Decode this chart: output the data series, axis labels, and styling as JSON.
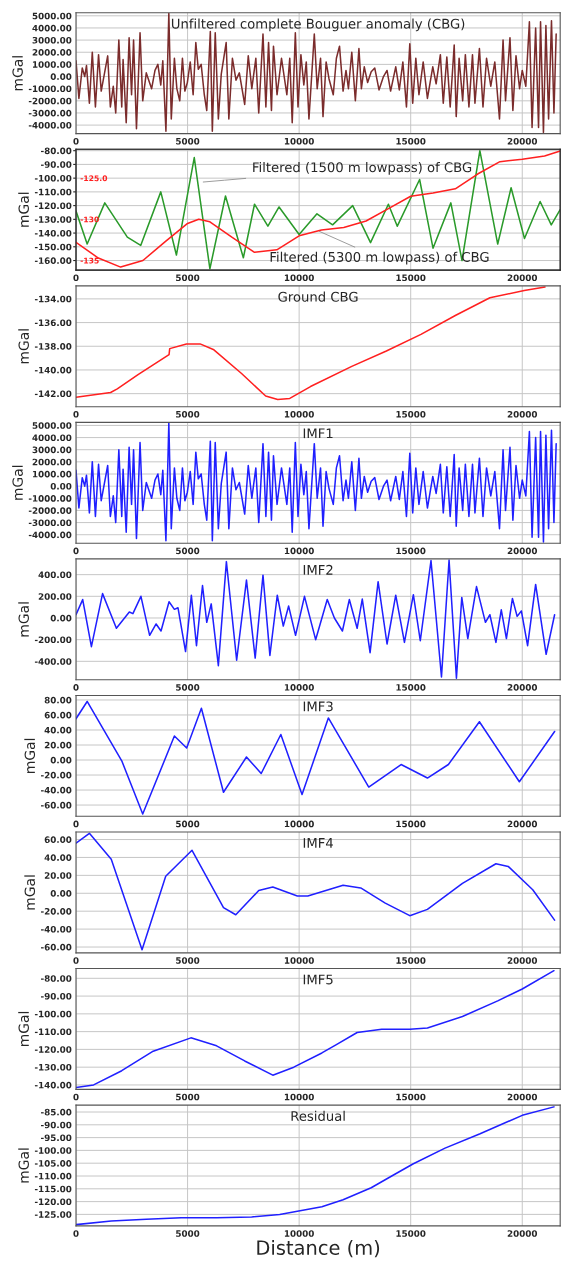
{
  "chart_data": [
    {
      "type": "line",
      "title": "Unfiltered complete Bouguer anomaly (CBG)",
      "ylabel": "mGal",
      "xlim": [
        0,
        21700
      ],
      "xticks": [
        0,
        5000,
        10000,
        15000,
        20000
      ],
      "ylim": [
        -4700,
        5250
      ],
      "yticks": [
        {
          "value": -4000,
          "label": "-4000.00"
        },
        {
          "value": -3000,
          "label": "-3000.00"
        },
        {
          "value": -2000,
          "label": "-2000.00"
        },
        {
          "value": -1000,
          "label": "-1000.00"
        },
        {
          "value": 0,
          "label": "0.00"
        },
        {
          "value": 1000,
          "label": "1000.00"
        },
        {
          "value": 2000,
          "label": "2000.00"
        },
        {
          "value": 3000,
          "label": "3000.00"
        },
        {
          "value": 4000,
          "label": "4000.00"
        },
        {
          "value": 5000,
          "label": "5000.00"
        }
      ],
      "grid": true,
      "x": [
        0,
        130,
        280,
        390,
        470,
        600,
        730,
        870,
        1010,
        1130,
        1420,
        1540,
        1670,
        1780,
        1920,
        2050,
        2110,
        2250,
        2380,
        2490,
        2580,
        2710,
        2870,
        2990,
        3150,
        3390,
        3540,
        3670,
        3800,
        3890,
        4030,
        4160,
        4270,
        4410,
        4520,
        4650,
        4770,
        4880,
        4990,
        5120,
        5250,
        5370,
        5480,
        5610,
        5750,
        5860,
        6020,
        6110,
        6240,
        6380,
        6510,
        6730,
        6850,
        7010,
        7170,
        7320,
        7560,
        7720,
        7880,
        8060,
        8190,
        8380,
        8510,
        8630,
        8760,
        8850,
        9010,
        9210,
        9450,
        9580,
        9690,
        9830,
        9950,
        10080,
        10210,
        10320,
        10440,
        10680,
        10810,
        10960,
        11070,
        11210,
        11340,
        11530,
        11670,
        11810,
        11970,
        12100,
        12210,
        12360,
        12520,
        12680,
        12790,
        12920,
        13070,
        13230,
        13390,
        13580,
        13780,
        13940,
        14100,
        14330,
        14490,
        14650,
        14810,
        14960,
        15090,
        15230,
        15370,
        15560,
        15750,
        15990,
        16140,
        16330,
        16460,
        16620,
        16770,
        16950,
        17040,
        17170,
        17330,
        17450,
        17610,
        17770,
        17880,
        18080,
        18240,
        18400,
        18590,
        18770,
        18980,
        19140,
        19250,
        19450,
        19580,
        19720,
        19880,
        20000,
        20160,
        20320,
        20440,
        20600,
        20730,
        20820,
        20950,
        21060,
        21180,
        21310,
        21420,
        21520
      ],
      "series": [
        {
          "color": "#7b2c2c",
          "values": [
            1300,
            -1800,
            700,
            0,
            900,
            -2200,
            2000,
            -2500,
            1800,
            -1200,
            1700,
            -2500,
            -800,
            -3000,
            3000,
            -2500,
            1400,
            -3800,
            3200,
            -1500,
            3000,
            -4300,
            3600,
            -2000,
            300,
            -1000,
            500,
            1000,
            -700,
            1300,
            -4500,
            5200,
            -3500,
            1500,
            -1000,
            -2000,
            1500,
            -1200,
            -500,
            1200,
            -1500,
            2800,
            600,
            1000,
            -1500,
            -2800,
            3700,
            -4500,
            3600,
            -3500,
            200,
            2800,
            -3500,
            1500,
            -300,
            300,
            -2300,
            1700,
            -1000,
            1500,
            -3000,
            3500,
            -2500,
            2800,
            -2800,
            2500,
            -1500,
            1500,
            -1500,
            1500,
            -3800,
            3600,
            -2500,
            1800,
            -700,
            1200,
            -3500,
            3500,
            -1000,
            1500,
            -3300,
            1200,
            -200,
            -1500,
            1500,
            2500,
            -1200,
            500,
            -1000,
            2000,
            -2000,
            2300,
            -1000,
            800,
            -500,
            400,
            700,
            -1100,
            0,
            500,
            -1200,
            800,
            -1100,
            1200,
            -2500,
            2700,
            -2200,
            1500,
            -1500,
            1200,
            -1800,
            800,
            -600,
            1800,
            -2200,
            1600,
            -2500,
            2600,
            -3300,
            1500,
            -2000,
            1800,
            -2500,
            1800,
            -2200,
            2300,
            -2500,
            1500,
            -800,
            1200,
            -3500,
            3000,
            -2000,
            3200,
            -2800,
            1700,
            -1000,
            500,
            -800,
            4500,
            -4200,
            4000,
            -4200,
            4500,
            -4600,
            4200,
            -3500,
            4600,
            -3000,
            3500
          ]
        }
      ]
    },
    {
      "type": "line",
      "ylabel": "mGal",
      "xlim": [
        0,
        21700
      ],
      "xticks": [
        0,
        5000,
        10000,
        15000,
        20000
      ],
      "ylim": [
        -167,
        -79
      ],
      "yticks": [
        {
          "value": -160,
          "label": "-160.00"
        },
        {
          "value": -150,
          "label": "-150.00"
        },
        {
          "value": -140,
          "label": "-140.00"
        },
        {
          "value": -130,
          "label": "-130.00"
        },
        {
          "value": -120,
          "label": "-120.00"
        },
        {
          "value": -110,
          "label": "-110.00"
        },
        {
          "value": -100,
          "label": "-100.00"
        },
        {
          "value": -90,
          "label": "-90.00"
        },
        {
          "value": -80,
          "label": "-80.00"
        }
      ],
      "y2lim": [
        -136.17,
        -121.5
      ],
      "y2ticks": [
        {
          "value": -135,
          "label": "-135"
        },
        {
          "value": -130,
          "label": "-130"
        },
        {
          "value": -125,
          "label": "-125.0"
        }
      ],
      "grid": true,
      "annotations": [
        {
          "text": "Filtered (1500 m lowpass) of CBG",
          "x": 5580,
          "y": -103
        },
        {
          "text": "Filtered (5300 m lowpass) of CBG",
          "x": 10800,
          "y": -138
        }
      ],
      "series": [
        {
          "color": "#2a9a2a",
          "x": [
            0,
            500,
            1290,
            2300,
            2900,
            3800,
            4500,
            5300,
            6000,
            6700,
            7500,
            8000,
            8600,
            9100,
            10000,
            10800,
            11500,
            12400,
            13200,
            14000,
            14400,
            15400,
            16000,
            16800,
            17300,
            18100,
            18900,
            19500,
            20100,
            20800,
            21300,
            21700
          ],
          "values": [
            -124,
            -148,
            -118,
            -143,
            -149,
            -110,
            -156,
            -85,
            -166,
            -113,
            -158,
            -119,
            -135,
            -121,
            -141,
            -126,
            -134,
            -120,
            -147,
            -119,
            -135,
            -101,
            -151,
            -118,
            -160,
            -80,
            -148,
            -107,
            -144,
            -117,
            -134,
            -123
          ]
        },
        {
          "color": "#ff2020",
          "axis": "y2",
          "x": [
            0,
            1000,
            2000,
            3000,
            4000,
            5000,
            5500,
            6000,
            7000,
            8000,
            9000,
            10000,
            11000,
            12000,
            13000,
            14000,
            15000,
            16000,
            17000,
            18000,
            19000,
            20000,
            21000,
            21700
          ],
          "values": [
            -132.8,
            -134.7,
            -135.8,
            -135.0,
            -132.7,
            -130.5,
            -130.0,
            -130.3,
            -132.2,
            -134.0,
            -133.7,
            -132.0,
            -131.3,
            -131.0,
            -130.2,
            -128.7,
            -127.2,
            -126.8,
            -126.3,
            -124.5,
            -123.0,
            -122.7,
            -122.3,
            -121.7
          ]
        }
      ]
    },
    {
      "type": "line",
      "title": "Ground CBG",
      "ylabel": "mGal",
      "xlim": [
        0,
        21700
      ],
      "xticks": [
        0,
        5000,
        10000,
        15000,
        20000
      ],
      "ylim": [
        -143.1,
        -132.9
      ],
      "yticks": [
        {
          "value": -142,
          "label": "-142.00"
        },
        {
          "value": -140,
          "label": "-140.00"
        },
        {
          "value": -138,
          "label": "-138.00"
        },
        {
          "value": -136,
          "label": "-136.00"
        },
        {
          "value": -134,
          "label": "-134.00"
        }
      ],
      "grid": true,
      "x": [
        0,
        1550,
        1850,
        2780,
        4170,
        4200,
        4950,
        5560,
        6180,
        7420,
        8500,
        9040,
        9580,
        10510,
        12360,
        13910,
        15460,
        17000,
        18550,
        20090,
        21020
      ],
      "series": [
        {
          "color": "#ff2020",
          "values": [
            -142.3,
            -141.9,
            -141.6,
            -140.4,
            -138.7,
            -138.2,
            -137.8,
            -137.8,
            -138.3,
            -140.3,
            -142.2,
            -142.5,
            -142.4,
            -141.4,
            -139.7,
            -138.4,
            -137.0,
            -135.4,
            -133.9,
            -133.3,
            -133.0
          ]
        }
      ]
    },
    {
      "type": "line",
      "title": "IMF1",
      "ylabel": "mGal",
      "xlim": [
        0,
        21700
      ],
      "xticks": [
        0,
        5000,
        10000,
        15000,
        20000
      ],
      "ylim": [
        -4700,
        5250
      ],
      "yticks": [
        {
          "value": -4000,
          "label": "-4000.00"
        },
        {
          "value": -3000,
          "label": "-3000.00"
        },
        {
          "value": -2000,
          "label": "-2000.00"
        },
        {
          "value": -1000,
          "label": "-1000.00"
        },
        {
          "value": 0,
          "label": "0.00"
        },
        {
          "value": 1000,
          "label": "1000.00"
        },
        {
          "value": 2000,
          "label": "2000.00"
        },
        {
          "value": 3000,
          "label": "3000.00"
        },
        {
          "value": 4000,
          "label": "4000.00"
        },
        {
          "value": 5000,
          "label": "5000.00"
        }
      ],
      "grid": true,
      "x": [
        0,
        130,
        280,
        390,
        470,
        600,
        730,
        870,
        1010,
        1130,
        1420,
        1540,
        1670,
        1780,
        1920,
        2050,
        2110,
        2250,
        2380,
        2490,
        2580,
        2710,
        2870,
        2990,
        3150,
        3390,
        3540,
        3670,
        3800,
        3890,
        4030,
        4160,
        4270,
        4410,
        4520,
        4650,
        4770,
        4880,
        4990,
        5120,
        5250,
        5370,
        5480,
        5610,
        5750,
        5860,
        6020,
        6110,
        6240,
        6380,
        6510,
        6730,
        6850,
        7010,
        7170,
        7320,
        7560,
        7720,
        7880,
        8060,
        8190,
        8380,
        8510,
        8630,
        8760,
        8850,
        9010,
        9210,
        9450,
        9580,
        9690,
        9830,
        9950,
        10080,
        10210,
        10320,
        10440,
        10680,
        10810,
        10960,
        11070,
        11210,
        11340,
        11530,
        11670,
        11810,
        11970,
        12100,
        12210,
        12360,
        12520,
        12680,
        12790,
        12920,
        13070,
        13230,
        13390,
        13580,
        13780,
        13940,
        14100,
        14330,
        14490,
        14650,
        14810,
        14960,
        15090,
        15230,
        15370,
        15560,
        15750,
        15990,
        16140,
        16330,
        16460,
        16620,
        16770,
        16950,
        17040,
        17170,
        17330,
        17450,
        17610,
        17770,
        17880,
        18080,
        18240,
        18400,
        18590,
        18770,
        18980,
        19140,
        19250,
        19450,
        19580,
        19720,
        19880,
        20000,
        20160,
        20320,
        20440,
        20600,
        20730,
        20820,
        20950,
        21060,
        21180,
        21310,
        21420,
        21520
      ],
      "series": [
        {
          "color": "#2020ff",
          "values": [
            1300,
            -1800,
            700,
            0,
            900,
            -2200,
            2000,
            -2500,
            1800,
            -1200,
            1700,
            -2500,
            -800,
            -3000,
            3000,
            -2500,
            1400,
            -3800,
            3200,
            -1500,
            3000,
            -4300,
            3600,
            -2000,
            300,
            -1000,
            500,
            1000,
            -700,
            1300,
            -4500,
            5200,
            -3500,
            1500,
            -1000,
            -2000,
            1500,
            -1200,
            -500,
            1200,
            -1500,
            2800,
            600,
            1000,
            -1500,
            -2800,
            3700,
            -4500,
            3600,
            -3500,
            200,
            2800,
            -3500,
            1500,
            -300,
            300,
            -2300,
            1700,
            -1000,
            1500,
            -3000,
            3500,
            -2500,
            2800,
            -2800,
            2500,
            -1500,
            1500,
            -1500,
            1500,
            -3800,
            3600,
            -2500,
            1800,
            -700,
            1200,
            -3500,
            3500,
            -1000,
            1500,
            -3300,
            1200,
            -200,
            -1500,
            1500,
            2500,
            -1200,
            500,
            -1000,
            2000,
            -2000,
            2300,
            -1000,
            800,
            -500,
            400,
            700,
            -1100,
            0,
            500,
            -1200,
            800,
            -1100,
            1200,
            -2500,
            2700,
            -2200,
            1500,
            -1500,
            1200,
            -1800,
            800,
            -600,
            1800,
            -2200,
            1600,
            -2500,
            2600,
            -3300,
            1500,
            -2000,
            1800,
            -2500,
            1800,
            -2200,
            2300,
            -2500,
            1500,
            -800,
            1200,
            -3500,
            3000,
            -2000,
            3200,
            -2800,
            1700,
            -1000,
            500,
            -800,
            4500,
            -4200,
            4000,
            -4200,
            4500,
            -4600,
            4200,
            -3500,
            4600,
            -3000,
            3500
          ]
        }
      ]
    },
    {
      "type": "line",
      "title": "IMF2",
      "ylabel": "mGal",
      "xlim": [
        0,
        21700
      ],
      "xticks": [
        0,
        5000,
        10000,
        15000,
        20000
      ],
      "ylim": [
        -570,
        545
      ],
      "yticks": [
        {
          "value": -400,
          "label": "-400.00"
        },
        {
          "value": -200,
          "label": "-200.00"
        },
        {
          "value": 0,
          "label": "0.00"
        },
        {
          "value": 200,
          "label": "200.00"
        },
        {
          "value": 400,
          "label": "400.00"
        }
      ],
      "grid": true,
      "x": [
        0,
        300,
        690,
        1190,
        1810,
        2390,
        2550,
        2910,
        3300,
        3590,
        3810,
        4170,
        4410,
        4570,
        4910,
        5170,
        5400,
        5670,
        5860,
        6060,
        6380,
        6740,
        7200,
        7640,
        8030,
        8380,
        8690,
        9020,
        9290,
        9530,
        9840,
        10240,
        10740,
        11260,
        11580,
        11940,
        12250,
        12600,
        12830,
        13180,
        13540,
        13940,
        14330,
        14720,
        15120,
        15430,
        15910,
        16380,
        16720,
        17050,
        17290,
        17560,
        17950,
        18350,
        18550,
        18820,
        19060,
        19290,
        19560,
        19770,
        19960,
        20240,
        20600,
        21070,
        21450
      ],
      "series": [
        {
          "color": "#2020ff",
          "values": [
            30,
            170,
            -265,
            225,
            -95,
            55,
            40,
            200,
            -160,
            -55,
            -120,
            150,
            80,
            95,
            -310,
            210,
            -255,
            300,
            -40,
            130,
            -440,
            520,
            -390,
            350,
            -370,
            395,
            -345,
            210,
            -75,
            110,
            -160,
            200,
            -200,
            170,
            0,
            -120,
            170,
            -95,
            175,
            -320,
            335,
            -240,
            210,
            -225,
            215,
            -210,
            530,
            -545,
            535,
            -555,
            190,
            -190,
            290,
            -40,
            30,
            -225,
            75,
            -190,
            180,
            15,
            65,
            -255,
            310,
            -335,
            30
          ]
        }
      ]
    },
    {
      "type": "line",
      "title": "IMF3",
      "ylabel": "mGal",
      "xlim": [
        0,
        21700
      ],
      "xticks": [
        0,
        5000,
        10000,
        15000,
        20000
      ],
      "ylim": [
        -75,
        86
      ],
      "yticks": [
        {
          "value": -60,
          "label": "-60.00"
        },
        {
          "value": -40,
          "label": "-40.00"
        },
        {
          "value": -20,
          "label": "-20.00"
        },
        {
          "value": 0,
          "label": "0.00"
        },
        {
          "value": 20,
          "label": "20.00"
        },
        {
          "value": 40,
          "label": "40.00"
        },
        {
          "value": 60,
          "label": "60.00"
        },
        {
          "value": 80,
          "label": "80.00"
        }
      ],
      "grid": true,
      "x": [
        0,
        500,
        2050,
        2990,
        4410,
        4960,
        5620,
        6610,
        7640,
        8300,
        9180,
        10130,
        11310,
        13120,
        14570,
        15750,
        16690,
        18080,
        19870,
        21450
      ],
      "series": [
        {
          "color": "#2020ff",
          "values": [
            55,
            78,
            -1,
            -72,
            32,
            16,
            69,
            -43,
            4,
            -18,
            34,
            -46,
            56,
            -36,
            -6,
            -24,
            -6,
            51,
            -29,
            38
          ]
        }
      ]
    },
    {
      "type": "line",
      "title": "IMF4",
      "ylabel": "mGal",
      "xlim": [
        0,
        21700
      ],
      "xticks": [
        0,
        5000,
        10000,
        15000,
        20000
      ],
      "ylim": [
        -66.5,
        68.4
      ],
      "yticks": [
        {
          "value": -60,
          "label": "-60.00"
        },
        {
          "value": -40,
          "label": "-40.00"
        },
        {
          "value": -20,
          "label": "-20.00"
        },
        {
          "value": 0,
          "label": "0.00"
        },
        {
          "value": 20,
          "label": "20.00"
        },
        {
          "value": 40,
          "label": "40.00"
        },
        {
          "value": 60,
          "label": "60.00"
        }
      ],
      "grid": true,
      "x": [
        0,
        600,
        1580,
        2960,
        4020,
        5200,
        6610,
        7160,
        8190,
        8820,
        9920,
        10390,
        11970,
        12760,
        13860,
        14960,
        15750,
        17320,
        18820,
        19370,
        20470,
        21450
      ],
      "series": [
        {
          "color": "#2020ff",
          "values": [
            56,
            67,
            38,
            -63,
            19,
            48,
            -16,
            -24,
            3,
            7,
            -3,
            -3,
            9,
            6,
            -11,
            -25,
            -18,
            11,
            33,
            30,
            4,
            -30
          ]
        }
      ]
    },
    {
      "type": "line",
      "title": "IMF5",
      "ylabel": "mGal",
      "xlim": [
        0,
        21700
      ],
      "xticks": [
        0,
        5000,
        10000,
        15000,
        20000
      ],
      "ylim": [
        -142.5,
        -74.5
      ],
      "yticks": [
        {
          "value": -140,
          "label": "-140.00"
        },
        {
          "value": -130,
          "label": "-130.00"
        },
        {
          "value": -120,
          "label": "-120.00"
        },
        {
          "value": -110,
          "label": "-110.00"
        },
        {
          "value": -100,
          "label": "-100.00"
        },
        {
          "value": -90,
          "label": "-90.00"
        },
        {
          "value": -80,
          "label": "-80.00"
        }
      ],
      "grid": true,
      "x": [
        0,
        790,
        2050,
        3460,
        5150,
        6300,
        7560,
        8820,
        9760,
        11020,
        11650,
        12600,
        13700,
        14960,
        15750,
        17320,
        18900,
        20000,
        21420
      ],
      "series": [
        {
          "color": "#2020ff",
          "values": [
            -141.5,
            -140,
            -132,
            -121,
            -113.5,
            -118,
            -126.5,
            -134.5,
            -130,
            -122,
            -117.5,
            -110.5,
            -108.7,
            -108.7,
            -108,
            -101.5,
            -92.7,
            -86,
            -75.7
          ]
        }
      ]
    },
    {
      "type": "line",
      "title": "Residual",
      "ylabel": "mGal",
      "xlabel": "Distance (m)",
      "xlim": [
        0,
        21700
      ],
      "xticks": [
        0,
        5000,
        10000,
        15000,
        20000
      ],
      "ylim": [
        -129.5,
        -82.3
      ],
      "yticks": [
        {
          "value": -125,
          "label": "-125.00"
        },
        {
          "value": -120,
          "label": "-120.00"
        },
        {
          "value": -115,
          "label": "-115.00"
        },
        {
          "value": -110,
          "label": "-110.00"
        },
        {
          "value": -105,
          "label": "-105.00"
        },
        {
          "value": -100,
          "label": "-100.00"
        },
        {
          "value": -95,
          "label": "-95.00"
        },
        {
          "value": -90,
          "label": "-90.00"
        },
        {
          "value": -85,
          "label": "-85.00"
        }
      ],
      "grid": true,
      "x": [
        0,
        1580,
        3150,
        4720,
        6300,
        7870,
        9130,
        9920,
        11020,
        11970,
        13230,
        14170,
        15120,
        16540,
        18110,
        20000,
        21420
      ],
      "series": [
        {
          "color": "#2020ff",
          "values": [
            -129,
            -127.6,
            -126.9,
            -126.3,
            -126.3,
            -126,
            -125,
            -123.8,
            -122,
            -119.3,
            -114.6,
            -109.9,
            -105.2,
            -99.1,
            -93.5,
            -86.3,
            -83
          ]
        }
      ]
    }
  ]
}
